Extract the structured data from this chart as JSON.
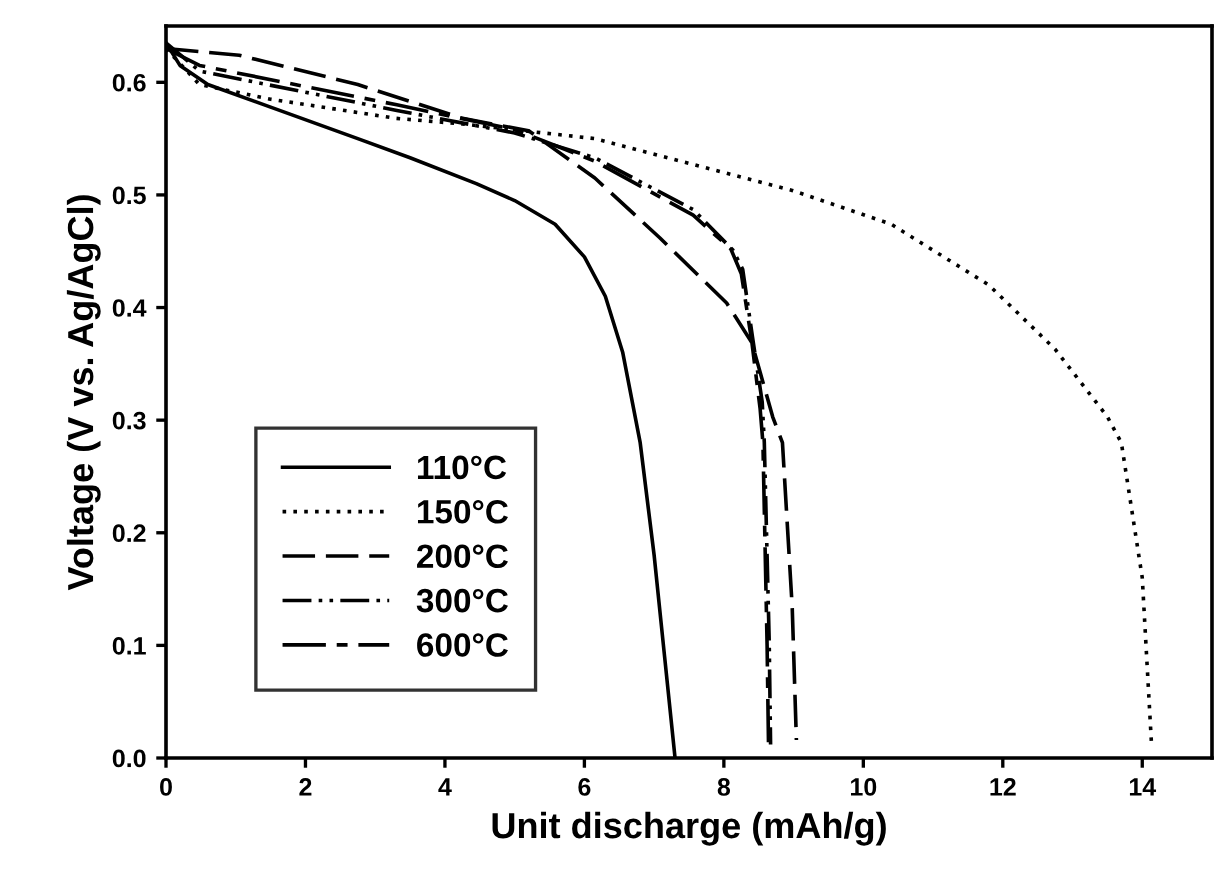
{
  "chart_data": {
    "type": "line",
    "xlabel": "Unit discharge (mAh/g)",
    "ylabel": "Voltage (V vs. Ag/AgCl)",
    "xlim": [
      0,
      15
    ],
    "ylim": [
      0,
      0.65
    ],
    "xticks": [
      0,
      2,
      4,
      6,
      8,
      10,
      12,
      14
    ],
    "yticks": [
      {
        "value": 0,
        "label": "0.0"
      },
      0.1,
      0.2,
      0.3,
      0.4,
      0.5,
      0.6
    ],
    "grid": false,
    "legend": "bottom left",
    "marker": "none",
    "series": [
      {
        "name": "110°C",
        "color": "#000000",
        "line_style": "solid",
        "x": [
          0,
          0.2,
          0.6,
          1.5,
          2.75,
          3.5,
          4.45,
          5,
          5.58,
          6,
          6.3,
          6.55,
          6.8,
          7,
          7.15,
          7.3
        ],
        "values": [
          0.635,
          0.615,
          0.598,
          0.578,
          0.55,
          0.533,
          0.51,
          0.495,
          0.474,
          0.445,
          0.41,
          0.36,
          0.28,
          0.18,
          0.09,
          0
        ]
      },
      {
        "name": "150°C",
        "color": "#000000",
        "line_style": "dotted",
        "x": [
          0,
          0.48,
          1.5,
          3.3,
          4.25,
          6.15,
          7.56,
          8.98,
          10.4,
          11.8,
          12.75,
          13.5,
          13.7,
          14,
          14.13
        ],
        "values": [
          0.63,
          0.598,
          0.585,
          0.568,
          0.563,
          0.55,
          0.527,
          0.504,
          0.474,
          0.42,
          0.363,
          0.303,
          0.28,
          0.16,
          0.015
        ]
      },
      {
        "name": "200°C",
        "color": "#000000",
        "line_style": "dashed",
        "x": [
          0,
          1.05,
          2.75,
          4.25,
          5.2,
          6.15,
          7.08,
          8.04,
          8.4,
          8.7,
          8.84,
          8.98,
          9.04
        ],
        "values": [
          0.63,
          0.624,
          0.598,
          0.568,
          0.557,
          0.515,
          0.462,
          0.404,
          0.369,
          0.303,
          0.28,
          0.134,
          0.016
        ]
      },
      {
        "name": "300°C",
        "color": "#000000",
        "line_style": "dashdotdot",
        "x": [
          0,
          0.48,
          3.31,
          5,
          6.15,
          7.56,
          8.13,
          8.27,
          8.41,
          8.55,
          8.58,
          8.65,
          8.67
        ],
        "values": [
          0.635,
          0.61,
          0.575,
          0.555,
          0.533,
          0.487,
          0.451,
          0.434,
          0.374,
          0.316,
          0.28,
          0.104,
          0.012
        ]
      },
      {
        "name": "600°C",
        "color": "#000000",
        "line_style": "dashdot",
        "x": [
          0,
          0.48,
          3.31,
          5,
          6.15,
          7.56,
          8.1,
          8.25,
          8.4,
          8.52,
          8.56,
          8.62,
          8.64
        ],
        "values": [
          0.63,
          0.615,
          0.58,
          0.558,
          0.53,
          0.482,
          0.452,
          0.43,
          0.37,
          0.31,
          0.28,
          0.1,
          0.012
        ]
      }
    ]
  }
}
